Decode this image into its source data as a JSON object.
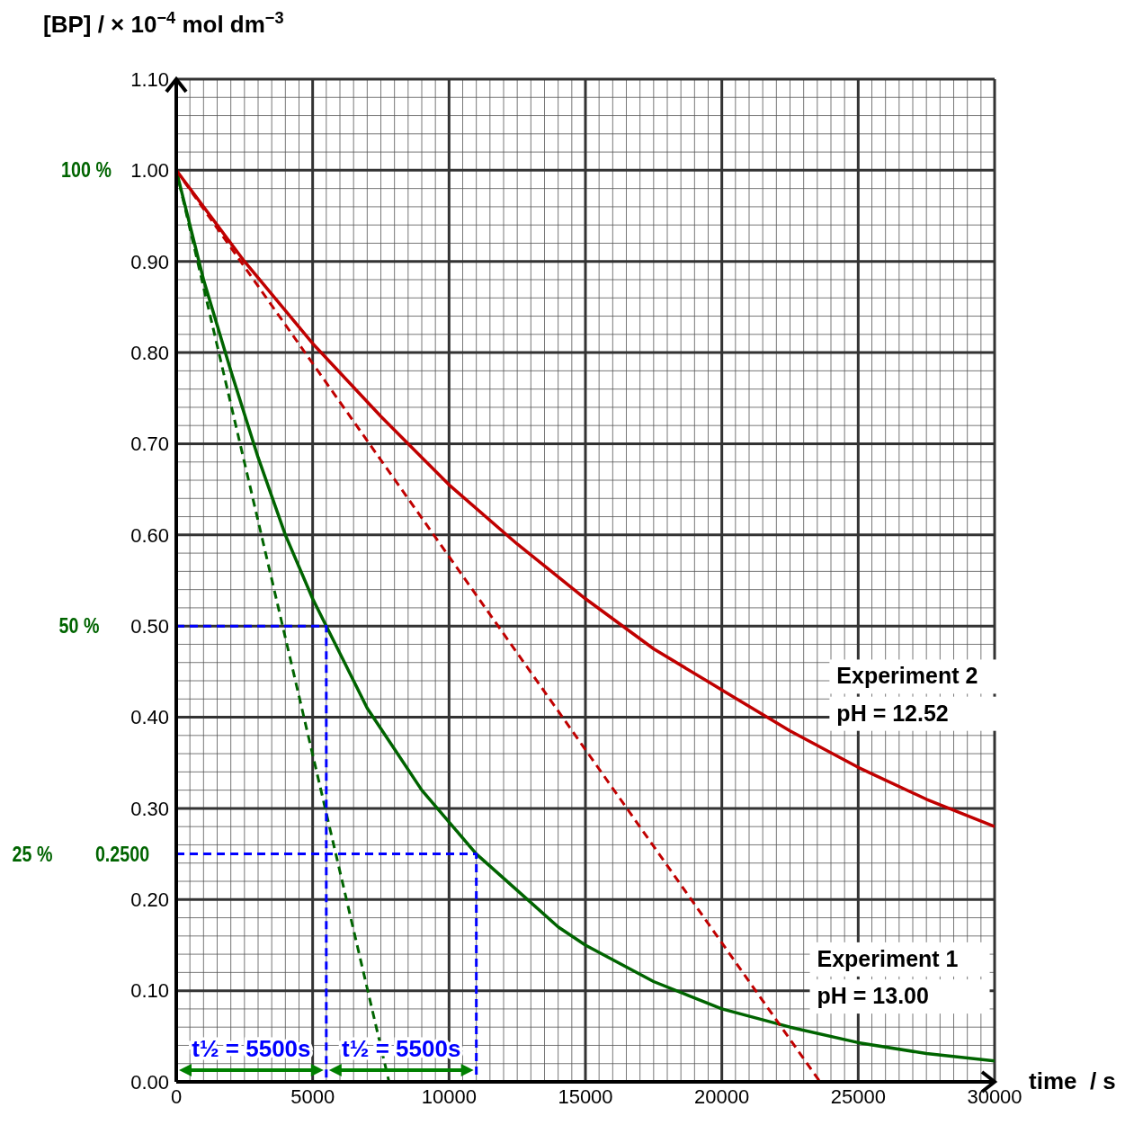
{
  "chart_data": {
    "type": "line",
    "xlabel": "time  / s",
    "ylabel": "[BP] / × 10$^{−4}$ mol dm$^{−3}$",
    "xlim": [
      0,
      30000
    ],
    "xticks": [
      0,
      5000,
      10000,
      15000,
      20000,
      25000,
      30000
    ],
    "ylim": [
      0,
      1.1
    ],
    "yticks": [
      {
        "value": 0,
        "label": "0.00"
      },
      {
        "value": 0.1,
        "label": "0.10"
      },
      {
        "value": 0.2,
        "label": "0.20"
      },
      {
        "value": 0.3,
        "label": "0.30"
      },
      {
        "value": 0.4,
        "label": "0.40"
      },
      {
        "value": 0.5,
        "label": "0.50"
      },
      {
        "value": 0.6,
        "label": "0.60"
      },
      {
        "value": 0.7,
        "label": "0.70"
      },
      {
        "value": 0.8,
        "label": "0.80"
      },
      {
        "value": 0.9,
        "label": "0.90"
      },
      {
        "value": 1,
        "label": "1.00"
      },
      {
        "value": 1.1,
        "label": "1.10"
      }
    ],
    "grid": true,
    "marker": "none",
    "series": [
      {
        "color": "#006400",
        "line_style": "solid",
        "x": [
          0,
          1000,
          2000,
          3000,
          4000,
          5000,
          5500,
          6000,
          7000,
          8000,
          9000,
          10000,
          11000,
          12500,
          14000,
          15000,
          17500,
          20000,
          22500,
          25000,
          27500,
          30000
        ],
        "values": [
          1.0,
          0.88,
          0.78,
          0.685,
          0.6,
          0.53,
          0.5,
          0.47,
          0.41,
          0.365,
          0.32,
          0.285,
          0.25,
          0.21,
          0.17,
          0.15,
          0.11,
          0.08,
          0.06,
          0.043,
          0.031,
          0.023
        ]
      },
      {
        "color": "#c00000",
        "line_style": "solid",
        "x": [
          0,
          2500,
          5000,
          7500,
          10000,
          12500,
          15000,
          17500,
          20000,
          22500,
          25000,
          27500,
          30000
        ],
        "values": [
          1.0,
          0.9,
          0.81,
          0.73,
          0.655,
          0.59,
          0.53,
          0.475,
          0.43,
          0.385,
          0.345,
          0.31,
          0.28
        ]
      },
      {
        "color": "#006400",
        "line_style": "dashed",
        "x": [
          0,
          7800
        ],
        "values": [
          1.0,
          0
        ]
      },
      {
        "color": "#c00000",
        "line_style": "dashed",
        "x": [
          0,
          23600
        ],
        "values": [
          1.0,
          0
        ]
      },
      {
        "color": "#0000ff",
        "line_style": "dashed",
        "x": [
          0,
          5500,
          5500
        ],
        "values": [
          0.5,
          0.5,
          0
        ]
      },
      {
        "color": "#0000ff",
        "line_style": "dashed",
        "x": [
          0,
          11000,
          11000
        ],
        "values": [
          0.25,
          0.25,
          0
        ]
      }
    ],
    "annotations": [
      "100 %",
      "50 %",
      "25 %",
      "0.2500",
      "t½ = 5500s",
      "t½ = 5500s",
      "Experiment 2",
      "pH = 12.52",
      "Experiment 1",
      "pH = 13.00"
    ]
  }
}
